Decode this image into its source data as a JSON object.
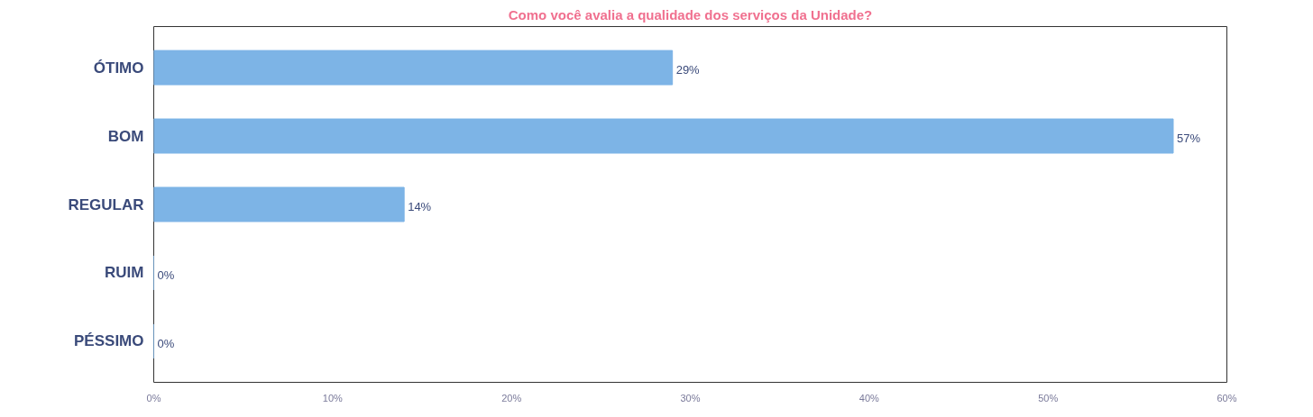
{
  "chart_data": {
    "type": "bar",
    "orientation": "horizontal",
    "title": "Como você avalia a qualidade dos serviços da Unidade?",
    "categories": [
      "ÓTIMO",
      "BOM",
      "REGULAR",
      "RUIM",
      "PÉSSIMO"
    ],
    "values": [
      29,
      57,
      14,
      0,
      0
    ],
    "value_labels": [
      "29%",
      "57%",
      "14%",
      "0%",
      "0%"
    ],
    "color": "#7db4e6",
    "xlim": [
      0,
      60
    ],
    "xticks": [
      {
        "value": 0,
        "label": "0%"
      },
      {
        "value": 10,
        "label": "10%"
      },
      {
        "value": 20,
        "label": "20%"
      },
      {
        "value": 30,
        "label": "30%"
      },
      {
        "value": 40,
        "label": "40%"
      },
      {
        "value": 50,
        "label": "50%"
      },
      {
        "value": 60,
        "label": "60%"
      }
    ],
    "grid": false
  }
}
